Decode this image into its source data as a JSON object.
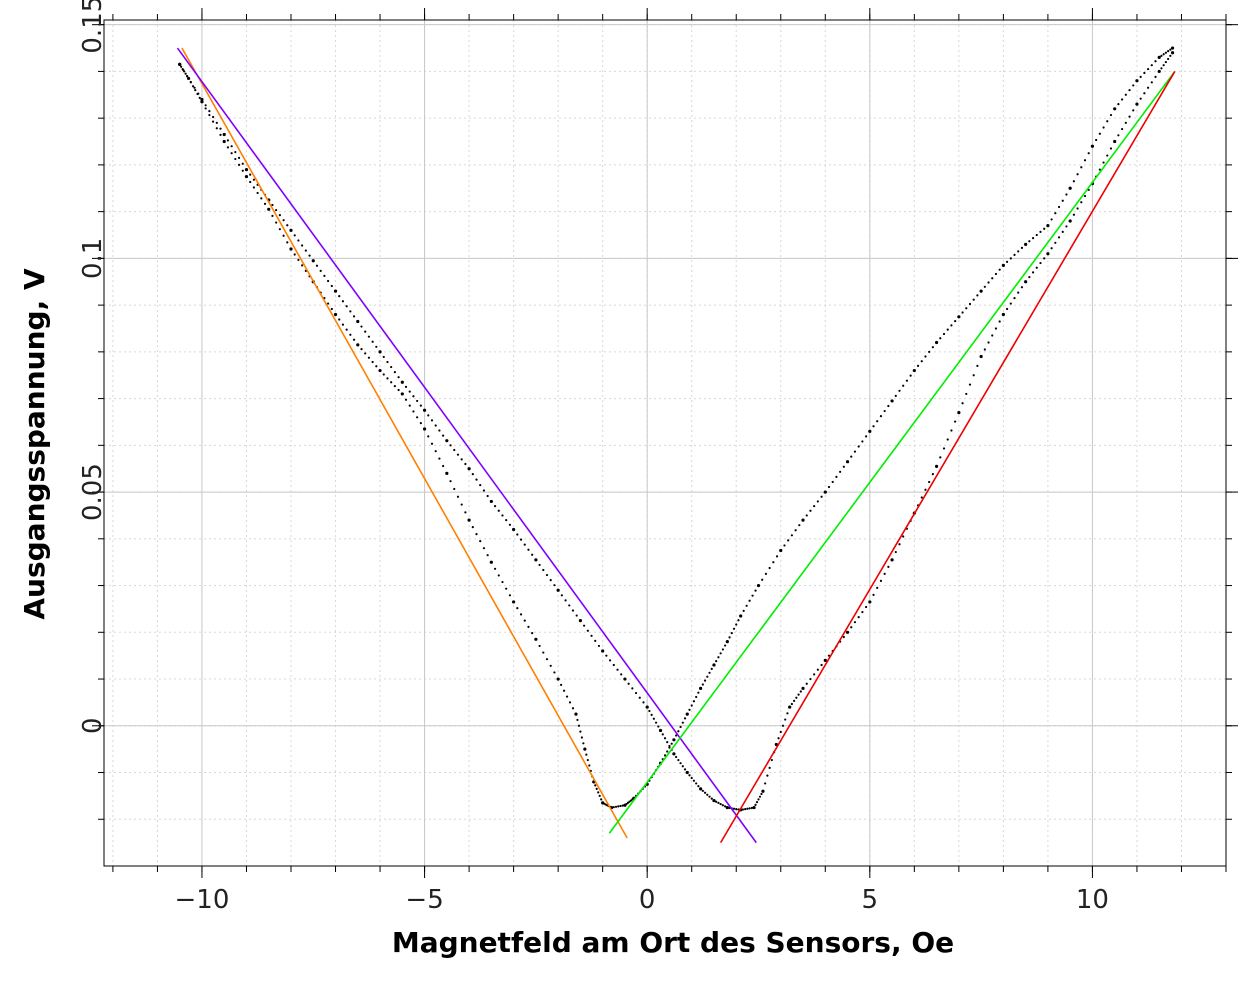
{
  "chart_data": {
    "type": "scatter",
    "xlabel": "Magnetfeld am Ort des Sensors, Oe",
    "ylabel": "Ausgangsspannung, V",
    "xlim": [
      -12.2,
      13.0
    ],
    "ylim": [
      -0.03,
      0.151
    ],
    "grid": true,
    "x_ticks": [
      -10,
      -5,
      0,
      5,
      10
    ],
    "x_tick_labels": [
      "−10",
      "−5",
      "0",
      "5",
      "10"
    ],
    "y_ticks": [
      0,
      0.05,
      0.1,
      0.15
    ],
    "y_tick_labels": [
      "0",
      "0.05",
      "0.1",
      "0.15"
    ],
    "series": [
      {
        "style": "points",
        "color": "#000000",
        "points": [
          [
            -10.5,
            0.1415
          ],
          [
            -10.3,
            0.1385
          ],
          [
            -10.0,
            0.1335
          ],
          [
            -9.5,
            0.125
          ],
          [
            -9.0,
            0.1175
          ],
          [
            -8.5,
            0.1105
          ],
          [
            -8.0,
            0.102
          ],
          [
            -7.5,
            0.095
          ],
          [
            -7.0,
            0.088
          ],
          [
            -6.5,
            0.0815
          ],
          [
            -6.0,
            0.076
          ],
          [
            -5.5,
            0.071
          ],
          [
            -5.0,
            0.0635
          ],
          [
            -4.5,
            0.054
          ],
          [
            -4.0,
            0.044
          ],
          [
            -3.5,
            0.035
          ],
          [
            -3.0,
            0.0265
          ],
          [
            -2.5,
            0.0185
          ],
          [
            -2.0,
            0.01
          ],
          [
            -1.6,
            0.0025
          ],
          [
            -1.4,
            -0.005
          ],
          [
            -1.2,
            -0.012
          ],
          [
            -1.0,
            -0.0165
          ],
          [
            -0.8,
            -0.0175
          ],
          [
            -0.5,
            -0.017
          ],
          [
            -0.3,
            -0.0155
          ],
          [
            0.0,
            -0.0125
          ],
          [
            0.3,
            -0.008
          ],
          [
            0.6,
            -0.003
          ],
          [
            0.9,
            0.0025
          ],
          [
            1.2,
            0.008
          ],
          [
            1.5,
            0.013
          ],
          [
            1.8,
            0.018
          ],
          [
            2.1,
            0.0235
          ],
          [
            2.5,
            0.03
          ],
          [
            3.0,
            0.0375
          ],
          [
            3.5,
            0.044
          ],
          [
            4.0,
            0.05
          ],
          [
            4.5,
            0.0565
          ],
          [
            5.0,
            0.063
          ],
          [
            5.5,
            0.0695
          ],
          [
            6.0,
            0.076
          ],
          [
            6.5,
            0.082
          ],
          [
            7.0,
            0.0875
          ],
          [
            7.5,
            0.093
          ],
          [
            8.0,
            0.0985
          ],
          [
            8.5,
            0.103
          ],
          [
            9.0,
            0.107
          ],
          [
            9.5,
            0.115
          ],
          [
            10.0,
            0.124
          ],
          [
            10.5,
            0.132
          ],
          [
            11.0,
            0.138
          ],
          [
            11.5,
            0.143
          ],
          [
            11.8,
            0.145
          ]
        ]
      },
      {
        "style": "points",
        "color": "#000000",
        "points": [
          [
            -10.5,
            0.1415
          ],
          [
            -10.0,
            0.134
          ],
          [
            -9.5,
            0.1265
          ],
          [
            -9.0,
            0.119
          ],
          [
            -8.5,
            0.1125
          ],
          [
            -8.0,
            0.106
          ],
          [
            -7.5,
            0.0995
          ],
          [
            -7.0,
            0.093
          ],
          [
            -6.5,
            0.0865
          ],
          [
            -6.0,
            0.08
          ],
          [
            -5.5,
            0.0735
          ],
          [
            -5.0,
            0.0675
          ],
          [
            -4.5,
            0.061
          ],
          [
            -4.0,
            0.055
          ],
          [
            -3.5,
            0.048
          ],
          [
            -3.0,
            0.042
          ],
          [
            -2.5,
            0.0355
          ],
          [
            -2.0,
            0.029
          ],
          [
            -1.5,
            0.0225
          ],
          [
            -1.0,
            0.016
          ],
          [
            -0.5,
            0.01
          ],
          [
            0.0,
            0.004
          ],
          [
            0.3,
            -0.001
          ],
          [
            0.6,
            -0.006
          ],
          [
            0.9,
            -0.01
          ],
          [
            1.2,
            -0.0135
          ],
          [
            1.5,
            -0.016
          ],
          [
            1.8,
            -0.0175
          ],
          [
            2.1,
            -0.018
          ],
          [
            2.4,
            -0.0175
          ],
          [
            2.6,
            -0.014
          ],
          [
            2.9,
            -0.004
          ],
          [
            3.2,
            0.004
          ],
          [
            3.5,
            0.008
          ],
          [
            4.0,
            0.014
          ],
          [
            4.5,
            0.02
          ],
          [
            5.0,
            0.0265
          ],
          [
            5.5,
            0.0355
          ],
          [
            6.0,
            0.0455
          ],
          [
            6.5,
            0.0555
          ],
          [
            7.0,
            0.067
          ],
          [
            7.5,
            0.079
          ],
          [
            8.0,
            0.088
          ],
          [
            8.5,
            0.095
          ],
          [
            9.0,
            0.101
          ],
          [
            9.5,
            0.108
          ],
          [
            10.0,
            0.116
          ],
          [
            10.5,
            0.125
          ],
          [
            11.0,
            0.133
          ],
          [
            11.5,
            0.14
          ],
          [
            11.8,
            0.144
          ]
        ]
      },
      {
        "style": "line",
        "color": "#ff8000",
        "points": [
          [
            -10.45,
            0.145
          ],
          [
            -0.45,
            -0.024
          ]
        ]
      },
      {
        "style": "line",
        "color": "#7f00ff",
        "points": [
          [
            -10.55,
            0.145
          ],
          [
            2.45,
            -0.025
          ]
        ]
      },
      {
        "style": "line",
        "color": "#00ee00",
        "points": [
          [
            -0.85,
            -0.023
          ],
          [
            11.85,
            0.14
          ]
        ]
      },
      {
        "style": "line",
        "color": "#ee0000",
        "points": [
          [
            1.65,
            -0.025
          ],
          [
            11.85,
            0.14
          ]
        ]
      }
    ]
  }
}
